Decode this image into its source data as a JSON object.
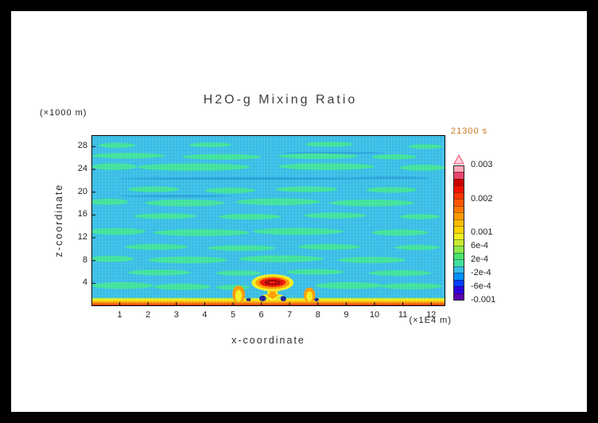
{
  "title": {
    "text": "H2O-g Mixing Ratio"
  },
  "timestamp": {
    "text": "21300 s",
    "color": "#cc7722"
  },
  "axes": {
    "x": {
      "label": "x-coordinate",
      "unit": "(×1E4 m)",
      "ticks": [
        1,
        2,
        3,
        4,
        5,
        6,
        7,
        8,
        9,
        10,
        11,
        12
      ]
    },
    "y": {
      "label": "z-coordinate",
      "unit": "(×1000 m)",
      "ticks": [
        4,
        8,
        12,
        16,
        20,
        24,
        28
      ]
    }
  },
  "colorbar": {
    "over_color": "#ffd0da",
    "over_stroke": "#e8506e",
    "ticks": [
      {
        "label": "0.003",
        "f": 1.0
      },
      {
        "label": "0.002",
        "f": 0.75
      },
      {
        "label": "0.001",
        "f": 0.5
      },
      {
        "label": "6e-4",
        "f": 0.4
      },
      {
        "label": "2e-4",
        "f": 0.3
      },
      {
        "label": "-2e-4",
        "f": 0.2
      },
      {
        "label": "-6e-4",
        "f": 0.1
      },
      {
        "label": "-0.001",
        "f": 0.0
      }
    ]
  },
  "chart_data": {
    "type": "heatmap",
    "title": "H2O-g Mixing Ratio",
    "time_label": "21300 s",
    "xlabel": "x-coordinate",
    "ylabel": "z-coordinate",
    "x_unit": "1E4 m",
    "y_unit": "1000 m",
    "xlim": [
      0,
      12.5
    ],
    "ylim": [
      0,
      30
    ],
    "levels": [
      -0.001,
      -0.0008,
      -0.0006,
      -0.0004,
      -0.0002,
      0,
      0.0002,
      0.0004,
      0.0006,
      0.0008,
      0.001,
      0.0012,
      0.0014,
      0.0016,
      0.0018,
      0.002,
      0.0022,
      0.0024,
      0.0026,
      0.0028,
      0.003
    ],
    "palette": [
      "#5a00b0",
      "#2b00dd",
      "#0040ff",
      "#0090ff",
      "#38bde6",
      "#3fe19c",
      "#4ae26e",
      "#8fe84a",
      "#c8ec30",
      "#f2ee20",
      "#ffd000",
      "#ffbb00",
      "#ff9900",
      "#ff7700",
      "#ff5500",
      "#ff3300",
      "#ee1100",
      "#cc0000",
      "#e8476e",
      "#ffaabb"
    ],
    "background_color": "#38bde6",
    "background_value_band": "-2e-4 to 0",
    "green_color": "#3fe19c",
    "green_value_band": "0 to 2e-4",
    "green_blobs": [
      [
        0.9,
        28.2,
        0.65,
        0.45
      ],
      [
        4.2,
        28.3,
        0.75,
        0.4
      ],
      [
        8.4,
        28.4,
        0.85,
        0.45
      ],
      [
        11.8,
        28.0,
        0.6,
        0.4
      ],
      [
        1.3,
        26.4,
        1.3,
        0.5
      ],
      [
        4.6,
        26.2,
        1.4,
        0.5
      ],
      [
        8.0,
        26.3,
        1.4,
        0.5
      ],
      [
        10.7,
        26.2,
        0.8,
        0.45
      ],
      [
        0.8,
        24.5,
        0.8,
        0.6
      ],
      [
        3.6,
        24.4,
        2.0,
        0.65
      ],
      [
        8.3,
        24.5,
        1.7,
        0.6
      ],
      [
        11.7,
        24.3,
        0.8,
        0.55
      ],
      [
        2.2,
        20.5,
        0.9,
        0.5
      ],
      [
        4.9,
        20.3,
        0.9,
        0.5
      ],
      [
        7.6,
        20.5,
        1.1,
        0.5
      ],
      [
        10.6,
        20.4,
        0.9,
        0.5
      ],
      [
        0.6,
        18.3,
        0.7,
        0.55
      ],
      [
        3.3,
        18.1,
        1.4,
        0.6
      ],
      [
        6.6,
        18.3,
        1.5,
        0.6
      ],
      [
        9.9,
        18.1,
        1.5,
        0.6
      ],
      [
        2.6,
        15.8,
        1.1,
        0.5
      ],
      [
        5.6,
        15.7,
        1.1,
        0.5
      ],
      [
        8.6,
        15.9,
        1.1,
        0.5
      ],
      [
        11.6,
        15.7,
        0.7,
        0.45
      ],
      [
        0.9,
        13.1,
        1.0,
        0.6
      ],
      [
        3.9,
        12.9,
        1.7,
        0.6
      ],
      [
        7.3,
        13.1,
        1.6,
        0.6
      ],
      [
        10.9,
        12.9,
        1.0,
        0.55
      ],
      [
        2.3,
        10.4,
        1.1,
        0.5
      ],
      [
        5.3,
        10.2,
        1.2,
        0.5
      ],
      [
        8.4,
        10.4,
        1.1,
        0.5
      ],
      [
        11.5,
        10.3,
        0.8,
        0.45
      ],
      [
        0.7,
        8.3,
        0.8,
        0.55
      ],
      [
        3.4,
        8.1,
        1.4,
        0.6
      ],
      [
        6.7,
        8.3,
        1.5,
        0.6
      ],
      [
        9.9,
        8.1,
        1.2,
        0.55
      ],
      [
        2.4,
        5.9,
        1.1,
        0.5
      ],
      [
        5.2,
        5.8,
        0.8,
        0.45
      ],
      [
        7.9,
        6.0,
        1.0,
        0.5
      ],
      [
        10.9,
        5.8,
        1.1,
        0.5
      ],
      [
        1.1,
        3.6,
        1.1,
        0.6
      ],
      [
        3.2,
        3.4,
        1.0,
        0.55
      ],
      [
        5.0,
        3.3,
        0.6,
        0.45
      ],
      [
        9.1,
        3.6,
        1.2,
        0.6
      ],
      [
        11.3,
        3.5,
        1.1,
        0.55
      ]
    ],
    "neg_streaks": {
      "color": "#259fd8",
      "list": [
        [
          5.5,
          22.4,
          4.5,
          0.22
        ],
        [
          10.6,
          22.5,
          1.4,
          0.2
        ],
        [
          3.0,
          19.3,
          2.0,
          0.18
        ],
        [
          8.6,
          26.9,
          1.8,
          0.16
        ]
      ]
    },
    "surface_layers": [
      {
        "z1": 0,
        "z2": 0.22,
        "c": "#e01000"
      },
      {
        "z1": 0.22,
        "z2": 0.5,
        "c": "#ff5500"
      },
      {
        "z1": 0.5,
        "z2": 0.8,
        "c": "#ff9900"
      },
      {
        "z1": 0.8,
        "z2": 1.05,
        "c": "#ffd000"
      },
      {
        "z1": 1.05,
        "z2": 1.3,
        "c": "#f2ee20"
      },
      {
        "z1": 1.3,
        "z2": 1.45,
        "c": "#a8e838"
      }
    ],
    "plume_shapes": [
      {
        "t": "e",
        "x": 5.2,
        "z": 2.1,
        "rx": 0.22,
        "rz": 1.5,
        "c": "#ff9900"
      },
      {
        "t": "e",
        "x": 5.2,
        "z": 1.8,
        "rx": 0.12,
        "rz": 1.05,
        "c": "#f2ee20"
      },
      {
        "t": "e",
        "x": 7.7,
        "z": 1.95,
        "rx": 0.2,
        "rz": 1.3,
        "c": "#ff9900"
      },
      {
        "t": "e",
        "x": 7.7,
        "z": 1.7,
        "rx": 0.11,
        "rz": 0.9,
        "c": "#f2ee20"
      },
      {
        "t": "p",
        "pts": [
          [
            6.22,
            3.4
          ],
          [
            6.58,
            3.4
          ],
          [
            6.58,
            2.1
          ],
          [
            6.78,
            1.95
          ],
          [
            6.4,
            0.85
          ],
          [
            6.02,
            1.95
          ],
          [
            6.22,
            2.1
          ]
        ],
        "c": "#f2ee20"
      },
      {
        "t": "p",
        "pts": [
          [
            6.3,
            3.3
          ],
          [
            6.5,
            3.3
          ],
          [
            6.5,
            2.1
          ],
          [
            6.62,
            1.95
          ],
          [
            6.4,
            1.25
          ],
          [
            6.18,
            1.95
          ],
          [
            6.3,
            2.1
          ]
        ],
        "c": "#ff9900"
      },
      {
        "t": "e",
        "x": 6.4,
        "z": 4.1,
        "rx": 0.74,
        "rz": 1.5,
        "c": "#f2ee20"
      },
      {
        "t": "e",
        "x": 6.4,
        "z": 4.1,
        "rx": 0.6,
        "rz": 1.12,
        "c": "#ff9900"
      },
      {
        "t": "e",
        "x": 6.4,
        "z": 4.15,
        "rx": 0.46,
        "rz": 0.78,
        "c": "#ee1100"
      },
      {
        "t": "e",
        "x": 6.4,
        "z": 4.15,
        "rx": 0.3,
        "rz": 0.48,
        "c": "#a00000"
      },
      {
        "t": "e",
        "x": 6.4,
        "z": 4.15,
        "rx": 0.14,
        "rz": 0.2,
        "c": "#ee1100"
      },
      {
        "t": "e",
        "x": 6.05,
        "z": 1.35,
        "rx": 0.12,
        "rz": 0.5,
        "c": "#1b1f92"
      },
      {
        "t": "e",
        "x": 6.78,
        "z": 1.3,
        "rx": 0.1,
        "rz": 0.45,
        "c": "#1b1f92"
      },
      {
        "t": "e",
        "x": 5.55,
        "z": 1.15,
        "rx": 0.08,
        "rz": 0.3,
        "c": "#1b1f92"
      },
      {
        "t": "e",
        "x": 7.95,
        "z": 1.15,
        "rx": 0.08,
        "rz": 0.3,
        "c": "#1b1f92"
      }
    ]
  }
}
